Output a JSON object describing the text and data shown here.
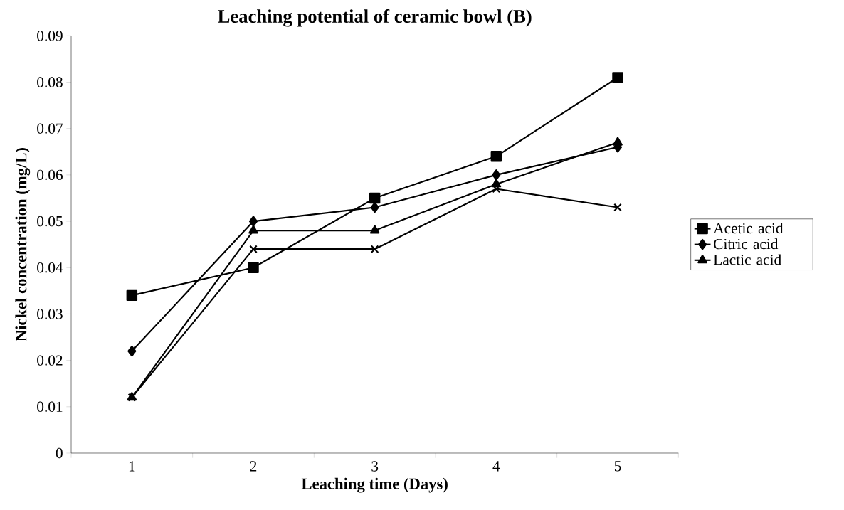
{
  "chart_data": {
    "type": "line",
    "title": "Leaching potential of ceramic bowl (B)",
    "xlabel": "Leaching time (Days)",
    "ylabel": "Nickel concentration (mg/L)",
    "categories": [
      "1",
      "2",
      "3",
      "4",
      "5"
    ],
    "series": [
      {
        "name": "Acetic acid",
        "color": "#000000",
        "marker": "square",
        "values": [
          0.034,
          0.04,
          0.055,
          0.064,
          0.081
        ]
      },
      {
        "name": "Citric acid",
        "color": "#000000",
        "marker": "diamond",
        "values": [
          0.022,
          0.05,
          0.053,
          0.06,
          0.066
        ]
      },
      {
        "name": "Lactic acid",
        "color": "#000000",
        "marker": "triangle",
        "values": [
          0.012,
          0.048,
          0.048,
          0.058,
          0.067
        ]
      },
      {
        "color": "#000000",
        "marker": "cross",
        "values": [
          0.012,
          0.044,
          0.044,
          0.057,
          0.053
        ]
      }
    ],
    "ylim": [
      0,
      0.09
    ],
    "yticks": [
      0,
      0.01,
      0.02,
      0.03,
      0.04,
      0.05,
      0.06,
      0.07,
      0.08,
      0.09
    ],
    "grid": false,
    "legend": "right",
    "line_style": "solid"
  }
}
